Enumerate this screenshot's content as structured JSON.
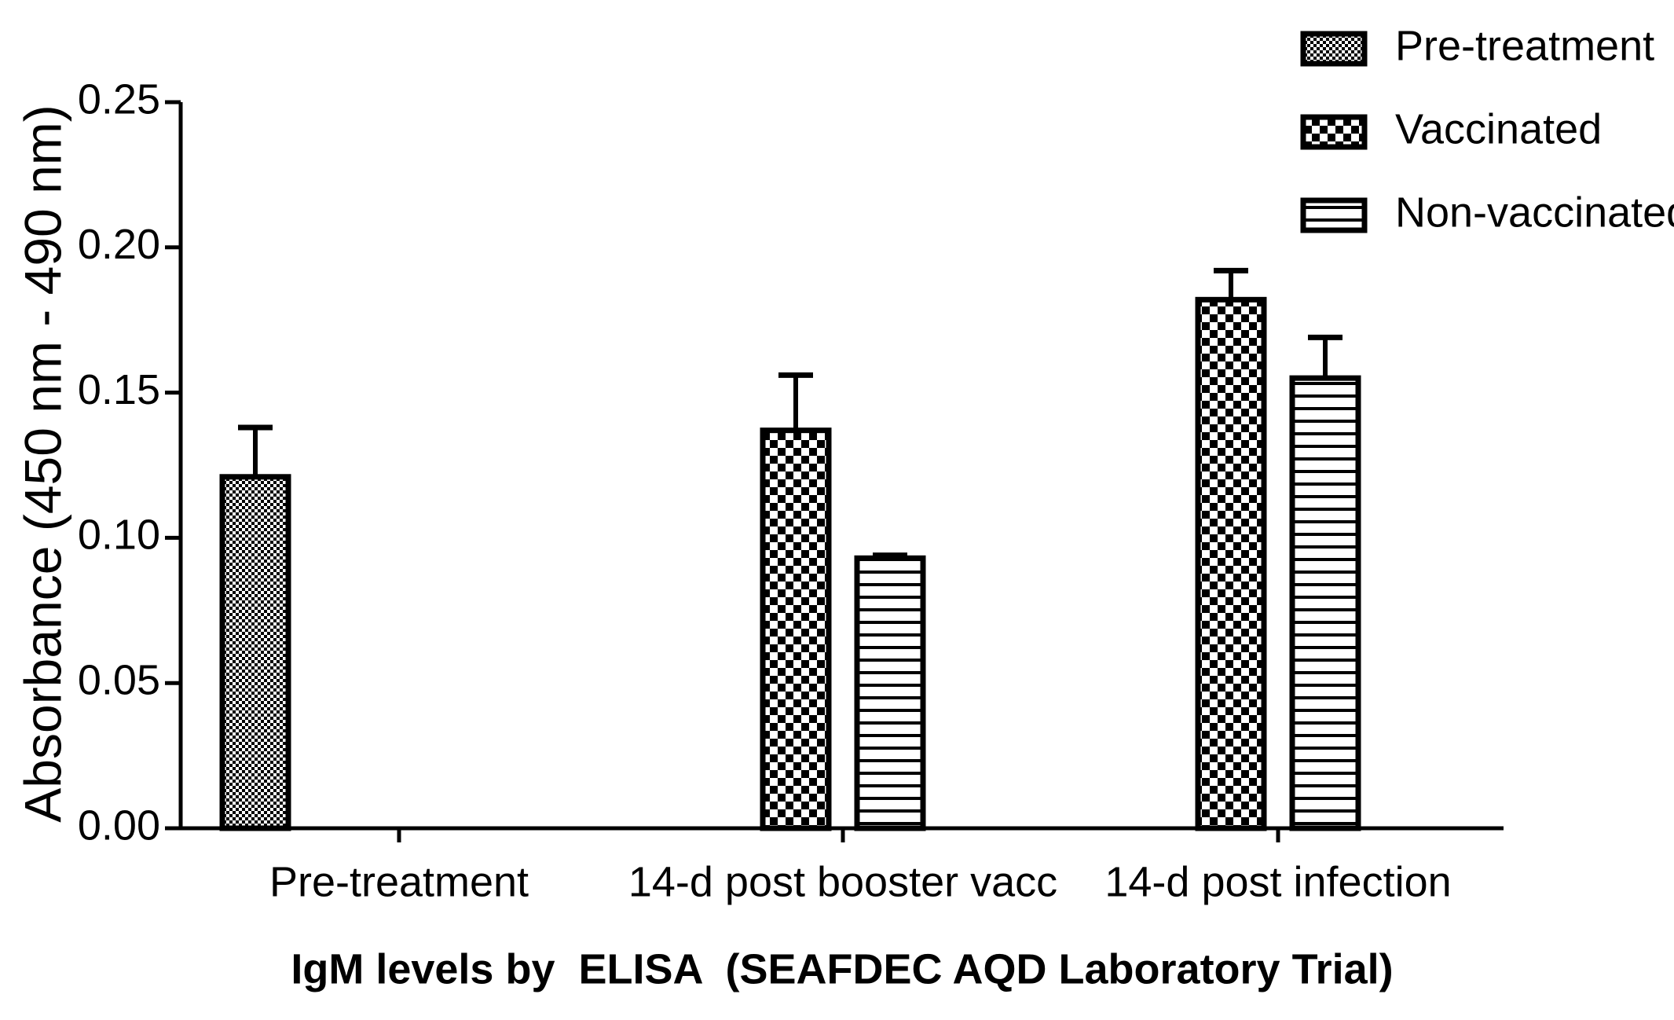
{
  "chart_data": {
    "type": "bar",
    "x_label": "IgM levels by  ELISA  (SEAFDEC AQD Laboratory Trial)",
    "y_label": "Absorbance (450 nm - 490 nm)",
    "categories": [
      "Pre-treatment",
      "14-d post booster vacc",
      "14-d post infection"
    ],
    "series": [
      {
        "name": "Pre-treatment",
        "color": "#000000",
        "values": [
          0.121,
          null,
          null
        ],
        "errors": [
          0.017,
          null,
          null
        ]
      },
      {
        "name": "Vaccinated",
        "color": "#000000",
        "values": [
          null,
          0.137,
          0.182
        ],
        "errors": [
          null,
          0.019,
          0.01
        ]
      },
      {
        "name": "Non-vaccinated",
        "color": "#000000",
        "values": [
          null,
          0.093,
          0.155
        ],
        "errors": [
          null,
          0.001,
          0.014
        ]
      }
    ],
    "ylim": [
      0,
      0.25
    ],
    "yticks": [
      {
        "value": 0,
        "label": "0.00"
      },
      0.05,
      {
        "value": 0.1,
        "label": "0.10"
      },
      0.15,
      {
        "value": 0.2,
        "label": "0.20"
      },
      0.25
    ],
    "legend": "top-right"
  }
}
